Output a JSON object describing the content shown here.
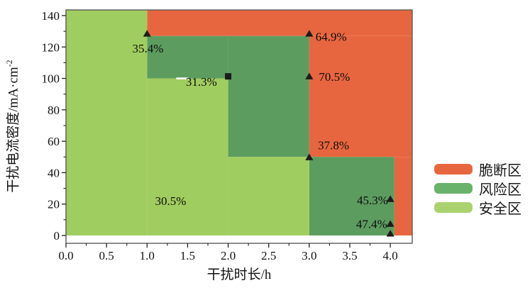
{
  "page": {
    "background": "#ffffff"
  },
  "chart_data": {
    "type": "step-region",
    "title": "",
    "xlabel": "干扰时长/h",
    "ylabel_main": "干扰电流密度/mA·cm",
    "ylabel_sup": "-2",
    "xlim": [
      0,
      4.27
    ],
    "ylim": [
      -5,
      143.6
    ],
    "grid": false,
    "legend_position": "right-middle",
    "x_ticks": {
      "values": [
        0,
        0.5,
        1,
        1.5,
        2,
        2.5,
        3,
        3.5,
        4
      ],
      "labels": [
        "0.0",
        "0.5",
        "1.0",
        "1.5",
        "2.0",
        "2.5",
        "3.0",
        "3.5",
        "4.0"
      ],
      "minor": [
        0.25,
        0.75,
        1.25,
        1.75,
        2.25,
        2.75,
        3.25,
        3.75
      ]
    },
    "y_ticks": {
      "values": [
        0,
        20,
        40,
        60,
        80,
        100,
        120,
        140
      ],
      "labels": [
        "0",
        "20",
        "40",
        "60",
        "80",
        "100",
        "120",
        "140"
      ],
      "minor": [
        10,
        30,
        50,
        70,
        90,
        110,
        130
      ]
    },
    "zones": [
      {
        "id": "brittle",
        "label": "脆断区",
        "color": "#E8663F",
        "legend_color": "#E8663F",
        "rects": [
          {
            "x": 1,
            "y": 127,
            "w": 3.27,
            "h": 16.6
          },
          {
            "x": 3,
            "y": 50,
            "w": 1.27,
            "h": 77
          },
          {
            "x": 4.05,
            "y": 0,
            "w": 0.22,
            "h": 50
          }
        ]
      },
      {
        "id": "risk",
        "label": "风险区",
        "color": "#5C9C5E",
        "legend_color": "#69B26B",
        "rects": [
          {
            "x": 1,
            "y": 100,
            "w": 1,
            "h": 27
          },
          {
            "x": 2,
            "y": 50,
            "w": 1,
            "h": 77
          },
          {
            "x": 3,
            "y": 0,
            "w": 1.05,
            "h": 50
          }
        ]
      },
      {
        "id": "safe",
        "label": "安全区",
        "color": "#A0CD5F",
        "legend_color": "#AAD26E",
        "rects": [
          {
            "x": 0,
            "y": 0,
            "w": 1,
            "h": 143.6
          },
          {
            "x": 1,
            "y": 0,
            "w": 1,
            "h": 100
          },
          {
            "x": 2,
            "y": 0,
            "w": 1,
            "h": 50
          }
        ]
      }
    ],
    "markers": [
      {
        "shape": "triangle",
        "x": 1.0,
        "y": 128.5
      },
      {
        "shape": "triangle",
        "x": 3.0,
        "y": 128.5
      },
      {
        "shape": "square",
        "x": 2.0,
        "y": 101.3
      },
      {
        "shape": "triangle",
        "x": 3.0,
        "y": 101.3
      },
      {
        "shape": "triangle",
        "x": 3.0,
        "y": 49.8
      },
      {
        "shape": "triangle",
        "x": 4.0,
        "y": 23.2
      },
      {
        "shape": "triangle",
        "x": 4.0,
        "y": 7.4
      },
      {
        "shape": "triangle",
        "x": 4.0,
        "y": 1.2
      }
    ],
    "point_labels": [
      {
        "text": "35.4%",
        "x": 1.01,
        "y": 119.2
      },
      {
        "text": "64.9%",
        "x": 3.27,
        "y": 126.6
      },
      {
        "text": "31.3%",
        "x": 1.67,
        "y": 98.0
      },
      {
        "text": "70.5%",
        "x": 3.31,
        "y": 101.2
      },
      {
        "text": "37.8%",
        "x": 3.3,
        "y": 57.5
      },
      {
        "text": "45.3%",
        "x": 3.78,
        "y": 22.6
      },
      {
        "text": "47.4%",
        "x": 3.77,
        "y": 7.4
      },
      {
        "text": "30.5%",
        "x": 1.29,
        "y": 22.1
      }
    ],
    "white_dash": {
      "x0": 1.36,
      "x1": 1.51,
      "y": 100
    },
    "colors": {
      "frame": "#5a5a5a",
      "marker": "#1c1c1c",
      "text": "#111111"
    }
  }
}
